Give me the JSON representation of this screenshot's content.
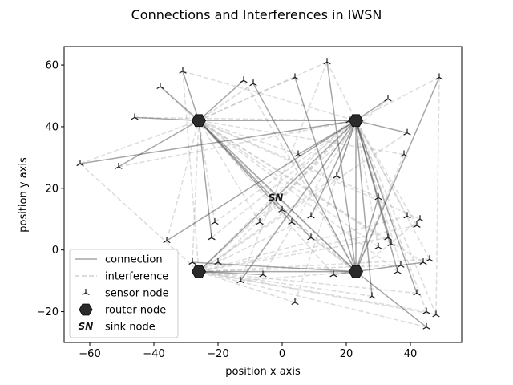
{
  "chart_data": {
    "type": "scatter",
    "title": "Connections and Interferences in IWSN",
    "xlabel": "position x axis",
    "ylabel": "position y axis",
    "xlim": [
      -68,
      56
    ],
    "ylim": [
      -30,
      66
    ],
    "xticks": [
      -60,
      -40,
      -20,
      0,
      20,
      40
    ],
    "yticks": [
      -20,
      0,
      20,
      40,
      60
    ],
    "grid": false,
    "legend_position": "lower-left",
    "legend": [
      {
        "label": "connection",
        "marker": "line"
      },
      {
        "label": "interference",
        "marker": "dashed-line"
      },
      {
        "label": "sensor node",
        "marker": "tri-down"
      },
      {
        "label": "router node",
        "marker": "hexagon"
      },
      {
        "label": "sink node",
        "marker": "text-SN"
      }
    ],
    "sink": {
      "label": "SN",
      "x": -2,
      "y": 17
    },
    "routers": [
      {
        "id": "R1",
        "x": -26,
        "y": 42
      },
      {
        "id": "R2",
        "x": 23,
        "y": 42
      },
      {
        "id": "R3",
        "x": -26,
        "y": -7
      },
      {
        "id": "R4",
        "x": 23,
        "y": -7
      }
    ],
    "sensors": [
      [
        -63,
        28
      ],
      [
        -51,
        27
      ],
      [
        -46,
        43
      ],
      [
        -38,
        53
      ],
      [
        -31,
        58
      ],
      [
        -27,
        42
      ],
      [
        -36,
        3
      ],
      [
        -28,
        -4
      ],
      [
        -22,
        4
      ],
      [
        -21,
        9
      ],
      [
        -20,
        -4
      ],
      [
        -12,
        55
      ],
      [
        -9,
        54
      ],
      [
        -13,
        -10
      ],
      [
        -7,
        9
      ],
      [
        -6,
        -8
      ],
      [
        0,
        13
      ],
      [
        3,
        9
      ],
      [
        4,
        56
      ],
      [
        5,
        31
      ],
      [
        4,
        -17
      ],
      [
        9,
        11
      ],
      [
        9,
        4
      ],
      [
        14,
        61
      ],
      [
        17,
        24
      ],
      [
        16,
        -8
      ],
      [
        21,
        42
      ],
      [
        28,
        -15
      ],
      [
        30,
        1
      ],
      [
        30,
        17
      ],
      [
        33,
        49
      ],
      [
        33,
        4
      ],
      [
        34,
        2
      ],
      [
        37,
        -5
      ],
      [
        36,
        -7
      ],
      [
        39,
        38
      ],
      [
        38,
        31
      ],
      [
        39,
        11
      ],
      [
        42,
        8
      ],
      [
        43,
        10
      ],
      [
        42,
        -14
      ],
      [
        44,
        -4
      ],
      [
        45,
        -20
      ],
      [
        45,
        -25
      ],
      [
        46,
        -3
      ],
      [
        48,
        -21
      ],
      [
        49,
        56
      ]
    ],
    "connections": [
      [
        -63,
        28,
        23,
        42
      ],
      [
        -51,
        27,
        -26,
        42
      ],
      [
        -46,
        43,
        -26,
        42
      ],
      [
        -38,
        53,
        -26,
        42
      ],
      [
        -31,
        58,
        -26,
        42
      ],
      [
        -36,
        3,
        23,
        42
      ],
      [
        -28,
        -4,
        23,
        -7
      ],
      [
        -22,
        4,
        -26,
        42
      ],
      [
        -12,
        55,
        -26,
        42
      ],
      [
        -9,
        54,
        23,
        -7
      ],
      [
        -13,
        -10,
        23,
        42
      ],
      [
        -6,
        -8,
        -26,
        -7
      ],
      [
        3,
        9,
        -26,
        42
      ],
      [
        4,
        56,
        23,
        -7
      ],
      [
        5,
        31,
        23,
        42
      ],
      [
        9,
        11,
        23,
        42
      ],
      [
        9,
        4,
        -26,
        42
      ],
      [
        14,
        61,
        23,
        -7
      ],
      [
        17,
        24,
        23,
        42
      ],
      [
        16,
        -8,
        23,
        -7
      ],
      [
        28,
        -15,
        23,
        42
      ],
      [
        30,
        17,
        23,
        -7
      ],
      [
        33,
        49,
        23,
        42
      ],
      [
        34,
        2,
        23,
        42
      ],
      [
        36,
        -7,
        23,
        42
      ],
      [
        39,
        38,
        23,
        42
      ],
      [
        42,
        -14,
        23,
        42
      ],
      [
        44,
        -4,
        23,
        -7
      ],
      [
        45,
        -25,
        23,
        -7
      ],
      [
        49,
        56,
        23,
        -7
      ],
      [
        -26,
        42,
        23,
        -7
      ],
      [
        -26,
        42,
        23,
        42
      ],
      [
        23,
        42,
        -26,
        -7
      ],
      [
        23,
        42,
        23,
        -7
      ],
      [
        -26,
        -7,
        23,
        -7
      ]
    ],
    "interferences": [
      [
        -63,
        28,
        -26,
        42
      ],
      [
        -51,
        27,
        23,
        42
      ],
      [
        -46,
        43,
        23,
        42
      ],
      [
        -38,
        53,
        23,
        -7
      ],
      [
        -31,
        58,
        23,
        42
      ],
      [
        -36,
        3,
        -26,
        42
      ],
      [
        -28,
        -4,
        -26,
        42
      ],
      [
        -22,
        4,
        23,
        42
      ],
      [
        -21,
        9,
        -26,
        42
      ],
      [
        -21,
        9,
        23,
        42
      ],
      [
        -20,
        -4,
        23,
        42
      ],
      [
        -12,
        55,
        23,
        -7
      ],
      [
        -9,
        54,
        -26,
        42
      ],
      [
        -13,
        -10,
        23,
        -7
      ],
      [
        -7,
        9,
        -26,
        42
      ],
      [
        -7,
        9,
        23,
        42
      ],
      [
        -6,
        -8,
        23,
        42
      ],
      [
        0,
        13,
        -26,
        42
      ],
      [
        0,
        13,
        23,
        -7
      ],
      [
        3,
        9,
        23,
        -7
      ],
      [
        4,
        56,
        -26,
        42
      ],
      [
        5,
        31,
        -26,
        42
      ],
      [
        4,
        -17,
        23,
        42
      ],
      [
        4,
        -17,
        -26,
        -7
      ],
      [
        9,
        11,
        -26,
        -7
      ],
      [
        9,
        4,
        23,
        -7
      ],
      [
        14,
        61,
        -26,
        42
      ],
      [
        14,
        61,
        23,
        42
      ],
      [
        17,
        24,
        -26,
        -7
      ],
      [
        16,
        -8,
        -26,
        42
      ],
      [
        21,
        42,
        -26,
        -7
      ],
      [
        28,
        -15,
        -26,
        -7
      ],
      [
        30,
        1,
        23,
        42
      ],
      [
        30,
        1,
        -26,
        42
      ],
      [
        30,
        17,
        -26,
        42
      ],
      [
        33,
        49,
        -26,
        -7
      ],
      [
        33,
        4,
        -26,
        -7
      ],
      [
        34,
        2,
        -26,
        42
      ],
      [
        37,
        -5,
        23,
        42
      ],
      [
        37,
        -5,
        -26,
        -7
      ],
      [
        36,
        -7,
        -26,
        42
      ],
      [
        39,
        38,
        -26,
        -7
      ],
      [
        38,
        31,
        23,
        -7
      ],
      [
        38,
        31,
        -26,
        42
      ],
      [
        39,
        11,
        23,
        42
      ],
      [
        39,
        11,
        -26,
        -7
      ],
      [
        42,
        8,
        23,
        42
      ],
      [
        42,
        8,
        -26,
        -7
      ],
      [
        43,
        10,
        23,
        -7
      ],
      [
        43,
        10,
        -26,
        42
      ],
      [
        42,
        -14,
        -26,
        -7
      ],
      [
        44,
        -4,
        -26,
        42
      ],
      [
        45,
        -20,
        -26,
        -7
      ],
      [
        45,
        -20,
        23,
        42
      ],
      [
        45,
        -25,
        -26,
        -7
      ],
      [
        46,
        -3,
        23,
        42
      ],
      [
        46,
        -3,
        -26,
        -7
      ],
      [
        48,
        -21,
        -26,
        -7
      ],
      [
        48,
        -21,
        23,
        42
      ],
      [
        49,
        56,
        23,
        42
      ],
      [
        49,
        56,
        48,
        -21
      ],
      [
        -63,
        28,
        -26,
        -7
      ],
      [
        -31,
        58,
        -26,
        -7
      ],
      [
        14,
        61,
        -13,
        -10
      ]
    ]
  }
}
